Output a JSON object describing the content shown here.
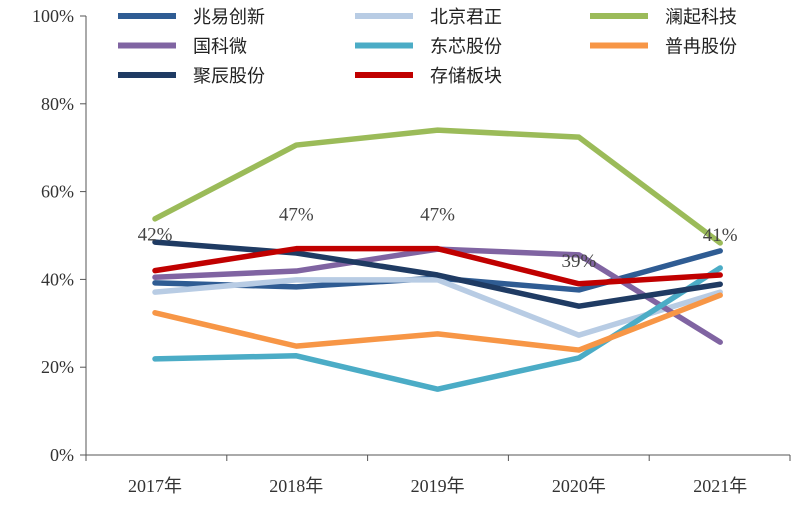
{
  "chart_data": {
    "type": "line",
    "categories": [
      "2017年",
      "2018年",
      "2019年",
      "2020年",
      "2021年"
    ],
    "ylim": [
      0,
      100
    ],
    "yticks": [
      "0%",
      "20%",
      "40%",
      "60%",
      "80%",
      "100%"
    ],
    "ytick_values": [
      0,
      20,
      40,
      60,
      80,
      100
    ],
    "legend_placement": "top",
    "series": [
      {
        "name": "兆易创新",
        "color": "#2f5c93",
        "values": [
          39.2,
          38.3,
          40.3,
          37.6,
          46.5
        ]
      },
      {
        "name": "北京君正",
        "color": "#b8cce4",
        "values": [
          37.1,
          39.9,
          39.9,
          27.3,
          37.1
        ]
      },
      {
        "name": "澜起科技",
        "color": "#9bbb59",
        "values": [
          53.8,
          70.6,
          74.0,
          72.4,
          48.3
        ]
      },
      {
        "name": "国科微",
        "color": "#8064a2",
        "values": [
          40.5,
          41.9,
          46.9,
          45.6,
          25.7
        ]
      },
      {
        "name": "东芯股份",
        "color": "#4bacc6",
        "values": [
          21.9,
          22.6,
          15.0,
          22.1,
          42.6
        ]
      },
      {
        "name": "普冉股份",
        "color": "#f79646",
        "values": [
          32.4,
          24.8,
          27.6,
          23.9,
          36.4
        ]
      },
      {
        "name": "聚辰股份",
        "color": "#1f3b63",
        "values": [
          48.5,
          46.0,
          41.0,
          33.9,
          38.9
        ]
      },
      {
        "name": "存储板块",
        "color": "#c00000",
        "values": [
          42,
          47,
          47,
          39,
          41
        ]
      }
    ],
    "data_labels": {
      "series": "存储板块",
      "labels": [
        "42%",
        "47%",
        "47%",
        "39%",
        "41%"
      ]
    }
  }
}
